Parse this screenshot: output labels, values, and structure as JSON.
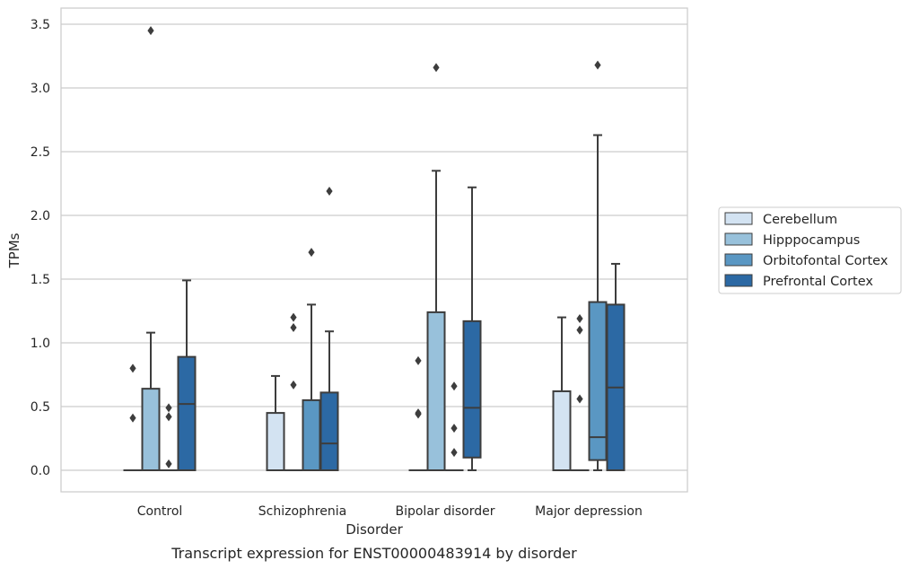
{
  "chart_data": {
    "type": "box",
    "title": "",
    "caption": "Transcript expression for ENST00000483914 by disorder",
    "xlabel": "Disorder",
    "ylabel": "TPMs",
    "ylim": [
      -0.17,
      3.62
    ],
    "yticks": [
      "0.0",
      "0.5",
      "1.0",
      "1.5",
      "2.0",
      "2.5",
      "3.0",
      "3.5"
    ],
    "ytick_values": [
      0,
      0.5,
      1.0,
      1.5,
      2.0,
      2.5,
      3.0,
      3.5
    ],
    "grid": true,
    "legend_position": "right",
    "categories": [
      "Control",
      "Schizophrenia",
      "Bipolar disorder",
      "Major depression"
    ],
    "series": [
      {
        "name": "Cerebellum",
        "color": "#d3e3f2",
        "boxes": [
          {
            "min": 0,
            "q1": 0,
            "median": 0,
            "q3": 0,
            "max": 0,
            "outliers": [
              0.8,
              0.41
            ]
          },
          {
            "min": 0,
            "q1": 0,
            "median": 0,
            "q3": 0.45,
            "max": 0.74,
            "outliers": []
          },
          {
            "min": 0,
            "q1": 0,
            "median": 0,
            "q3": 0,
            "max": 0,
            "outliers": [
              0.86,
              0.45,
              0.44
            ]
          },
          {
            "min": 0,
            "q1": 0,
            "median": 0,
            "q3": 0.62,
            "max": 1.2,
            "outliers": []
          }
        ]
      },
      {
        "name": "Hipppocampus",
        "color": "#98c1db",
        "boxes": [
          {
            "min": 0,
            "q1": 0,
            "median": 0,
            "q3": 0.64,
            "max": 1.08,
            "outliers": [
              3.45
            ]
          },
          {
            "min": 0,
            "q1": 0,
            "median": 0,
            "q3": 0,
            "max": 0,
            "outliers": [
              1.2,
              1.12,
              0.67
            ]
          },
          {
            "min": 0,
            "q1": 0,
            "median": 0,
            "q3": 1.24,
            "max": 2.35,
            "outliers": [
              3.16
            ]
          },
          {
            "min": 0,
            "q1": 0,
            "median": 0,
            "q3": 0,
            "max": 0,
            "outliers": [
              1.19,
              1.1,
              0.56
            ]
          }
        ]
      },
      {
        "name": "Orbitofontal Cortex",
        "color": "#5a97c3",
        "boxes": [
          {
            "min": 0,
            "q1": 0,
            "median": 0,
            "q3": 0,
            "max": 0,
            "outliers": [
              0.49,
              0.42,
              0.05
            ]
          },
          {
            "min": 0,
            "q1": 0,
            "median": 0,
            "q3": 0.55,
            "max": 1.3,
            "outliers": [
              1.71
            ]
          },
          {
            "min": 0,
            "q1": 0,
            "median": 0,
            "q3": 0,
            "max": 0,
            "outliers": [
              0.66,
              0.33,
              0.14
            ]
          },
          {
            "min": 0,
            "q1": 0.08,
            "median": 0.26,
            "q3": 1.32,
            "max": 2.63,
            "outliers": [
              3.18
            ]
          }
        ]
      },
      {
        "name": "Prefrontal Cortex",
        "color": "#2c69a4",
        "boxes": [
          {
            "min": 0,
            "q1": 0,
            "median": 0.52,
            "q3": 0.89,
            "max": 1.49,
            "outliers": []
          },
          {
            "min": 0,
            "q1": 0,
            "median": 0.21,
            "q3": 0.61,
            "max": 1.09,
            "outliers": [
              2.19
            ]
          },
          {
            "min": 0,
            "q1": 0.1,
            "median": 0.49,
            "q3": 1.17,
            "max": 2.22,
            "outliers": []
          },
          {
            "min": 0,
            "q1": 0,
            "median": 0.65,
            "q3": 1.3,
            "max": 1.62,
            "outliers": []
          }
        ]
      }
    ]
  }
}
